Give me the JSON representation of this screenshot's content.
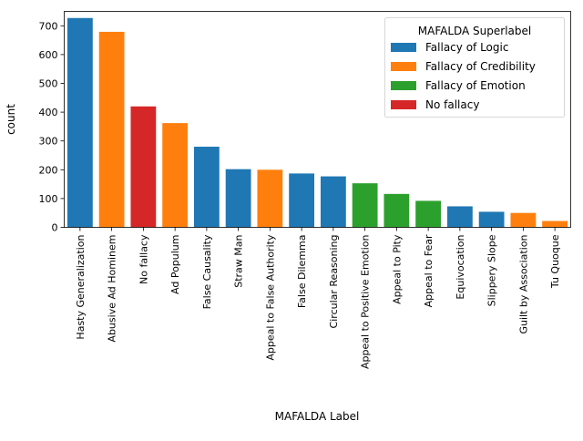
{
  "chart_data": {
    "type": "bar",
    "title": "",
    "xlabel": "MAFALDA Label",
    "ylabel": "count",
    "ylim": [
      0,
      750
    ],
    "yticks": [
      0,
      100,
      200,
      300,
      400,
      500,
      600,
      700
    ],
    "grid": false,
    "legend": {
      "title": "MAFALDA Superlabel",
      "placement": "top-right",
      "entries": [
        {
          "name": "Fallacy of Logic",
          "color": "#1f77b4"
        },
        {
          "name": "Fallacy of Credibility",
          "color": "#ff7f0e"
        },
        {
          "name": "Fallacy of Emotion",
          "color": "#2ca02c"
        },
        {
          "name": "No fallacy",
          "color": "#d62728"
        }
      ]
    },
    "categories": [
      "Hasty Generalization",
      "Abusive Ad Hominem",
      "No fallacy",
      "Ad Populum",
      "False Causality",
      "Straw Man",
      "Appeal to False Authority",
      "False Dilemma",
      "Circular Reasoning",
      "Appeal to Positive Emotion",
      "Appeal to Pity",
      "Appeal to Fear",
      "Equivocation",
      "Slippery Slope",
      "Guilt by Association",
      "Tu Quoque"
    ],
    "values": [
      727,
      679,
      420,
      362,
      280,
      202,
      200,
      187,
      177,
      153,
      116,
      92,
      73,
      54,
      50,
      22
    ],
    "superlabels": [
      "Fallacy of Logic",
      "Fallacy of Credibility",
      "No fallacy",
      "Fallacy of Credibility",
      "Fallacy of Logic",
      "Fallacy of Logic",
      "Fallacy of Credibility",
      "Fallacy of Logic",
      "Fallacy of Logic",
      "Fallacy of Emotion",
      "Fallacy of Emotion",
      "Fallacy of Emotion",
      "Fallacy of Logic",
      "Fallacy of Logic",
      "Fallacy of Credibility",
      "Fallacy of Credibility"
    ]
  }
}
